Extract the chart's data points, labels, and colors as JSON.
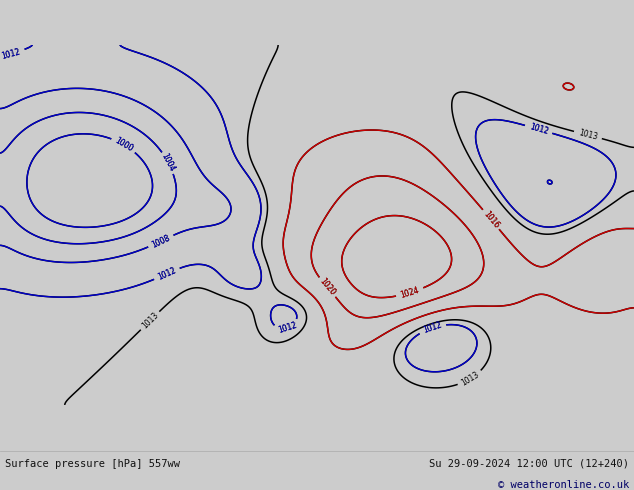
{
  "title_left": "Surface pressure [hPa] 557ww",
  "title_right": "Su 29-09-2024 12:00 UTC (12+240)",
  "copyright": "© weatheronline.co.uk",
  "bg_color": "#cccccc",
  "land_color": "#c8eeaa",
  "ocean_color": "#cccccc",
  "lake_color": "#bbbbbb",
  "border_color": "#666666",
  "coast_color": "#444444",
  "state_color": "#777777",
  "footer_bg": "#d4d4d4",
  "map_lonmin": -175,
  "map_lonmax": -50,
  "map_latmin": 14,
  "map_latmax": 85,
  "footer_fontsize": 7.5
}
